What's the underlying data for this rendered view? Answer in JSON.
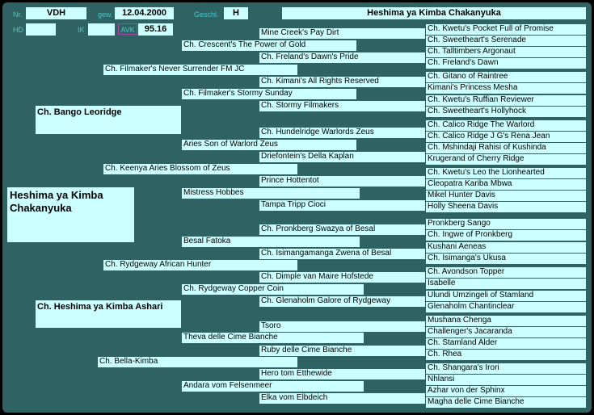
{
  "header": {
    "nr_label": "Nr.",
    "nr_value": "VDH",
    "gew_label": "gew.",
    "gew_value": "12.04.2000",
    "geschl_label": "Geschl.",
    "geschl_value": "H",
    "title": "Heshima ya Kimba Chakanyuka",
    "hd_label": "HD",
    "hd_value": "",
    "ik_label": "IK",
    "ik_value": "",
    "avk_label": "AVK",
    "avk_value": "95.16"
  },
  "subject": "Heshima ya Kimba Chakanyuka",
  "sire": "Ch. Bango Leoridge",
  "dam": "Ch. Heshima ya Kimba Ashari",
  "gen3": [
    "Ch. Filmaker's Never Surrender FM JC",
    "Ch. Keenya Aries Blossom of Zeus",
    "Ch. Rydgeway African Hunter",
    "Ch. Bella-Kimba"
  ],
  "gen4": [
    "Ch. Crescent's The Power of Gold",
    "Ch. Filmaker's Stormy Sunday",
    "Aries Son of Warlord Zeus",
    "Mistress Hobbes",
    "Besal Fatoka",
    "Ch. Rydgeway Copper Coin",
    "Theva delle Cime Bianche",
    "Andara vom Felsenmeer"
  ],
  "gen5": [
    "Mine Creek's Pay Dirt",
    "Ch. Freland's Dawn's Pride",
    "Ch. Kimani's All Rights Reserved",
    "Ch. Stormy Filmakers",
    "Ch. Hundelridge Warlords Zeus",
    "Driefontein's Della Kaplan",
    "Prince Hottentot",
    "Tampa Tripp Cioci",
    "Ch. Pronkberg Swazya of Besal",
    "Ch. Isimangamanga Zwena of Besal",
    "Ch. Dimple van Maire Hofstede",
    "Ch. Glenaholm Galore of Rydgeway",
    "Tsoro",
    "Ruby delle Cime Bianche",
    "Hero tom Etthewide",
    "Elka vom Elbdeich"
  ],
  "gen6": [
    "Ch. Kwetu's Pocket Full of Promise",
    "Ch. Sweetheart's Serenade",
    "Ch. Talltimbers Argonaut",
    "Ch. Freland's Dawn",
    "Ch. Gitano of Raintree",
    "Kimani's Princess Mesha",
    "Ch. Kwetu's Ruffian Reviewer",
    "Ch. Sweetheart's Hollyhock",
    "Ch. Calico Ridge The Warlord",
    "Ch. Calico Ridge J G's Rena Jean",
    "Ch. Mshindaji Rahisi of Kushinda",
    "Krugerand of Cherry Ridge",
    "Ch. Kwetu's Leo the Lionhearted",
    "Cleopatra Kariba Mbwa",
    "Mikel Hunter Davis",
    "Holly Sheena Davis",
    "Pronkberg Sango",
    "Ch. Ingwe of Pronkberg",
    "Kushani Aeneas",
    "Ch. Isimanga's Ukusa",
    "Ch. Avondson Topper",
    "Isabelle",
    "Ulundi Umzingeli of Stamland",
    "Glenaholm Chantinclear",
    "Mushana Chenga",
    "Challenger's Jacaranda",
    "Ch. Stamland Alder",
    "Ch.  Rhea",
    "Ch. Shangara's Irori",
    "Nhlansi",
    "Azhar von der Sphinx",
    "Magha delle Cime Bianche"
  ]
}
